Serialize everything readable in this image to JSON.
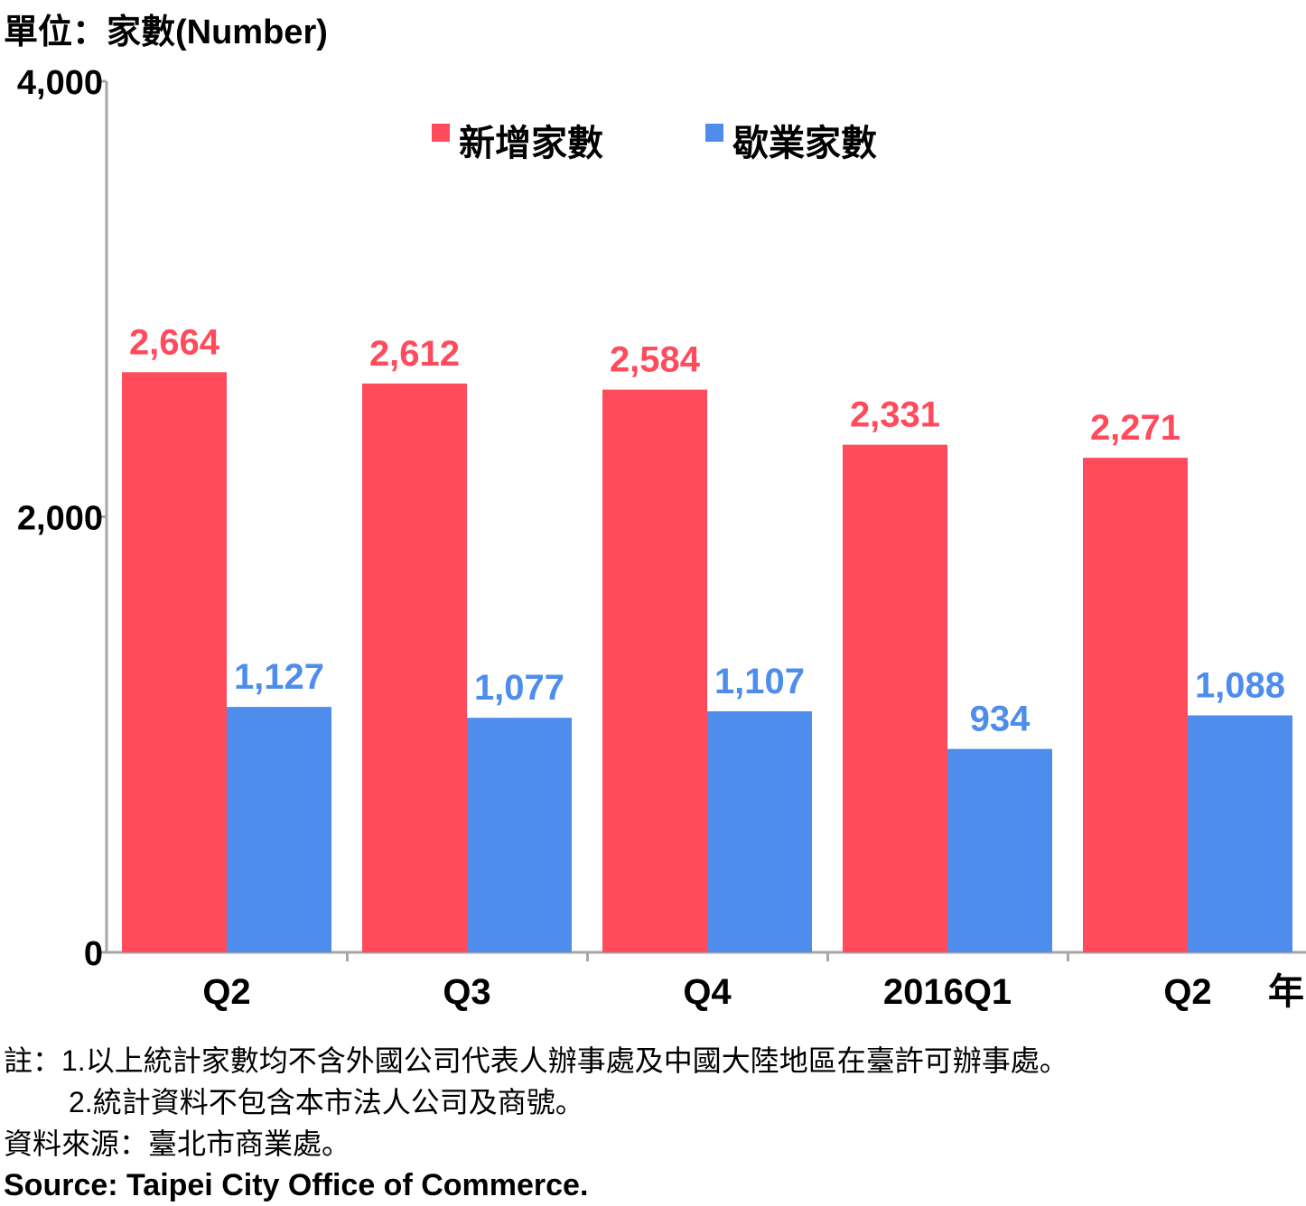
{
  "unit_label": "單位：家數(Number)",
  "x_unit_label": "年",
  "chart_data": {
    "type": "bar",
    "categories": [
      "Q2",
      "Q3",
      "Q4",
      "2016Q1",
      "Q2"
    ],
    "series": [
      {
        "name": "新增家數",
        "color": "#ff4b5c",
        "values": [
          2664,
          2612,
          2584,
          2331,
          2271
        ]
      },
      {
        "name": "歇業家數",
        "color": "#4f8ded",
        "values": [
          1127,
          1077,
          1107,
          934,
          1088
        ]
      }
    ],
    "data_labels": [
      [
        "2,664",
        "2,612",
        "2,584",
        "2,331",
        "2,271"
      ],
      [
        "1,127",
        "1,077",
        "1,107",
        "934",
        "1,088"
      ]
    ],
    "ylim": [
      0,
      4000
    ],
    "yticks": [
      0,
      2000,
      4000
    ],
    "ytick_labels": [
      "0",
      "2,000",
      "4,000"
    ],
    "legend_position": "top-center"
  },
  "notes": {
    "note1": "註：1.以上統計家數均不含外國公司代表人辦事處及中國大陸地區在臺許可辦事處。",
    "note2": "2.統計資料不包含本市法人公司及商號。",
    "source_zh": "資料來源：臺北市商業處。",
    "source_en": "Source: Taipei City Office of Commerce."
  }
}
